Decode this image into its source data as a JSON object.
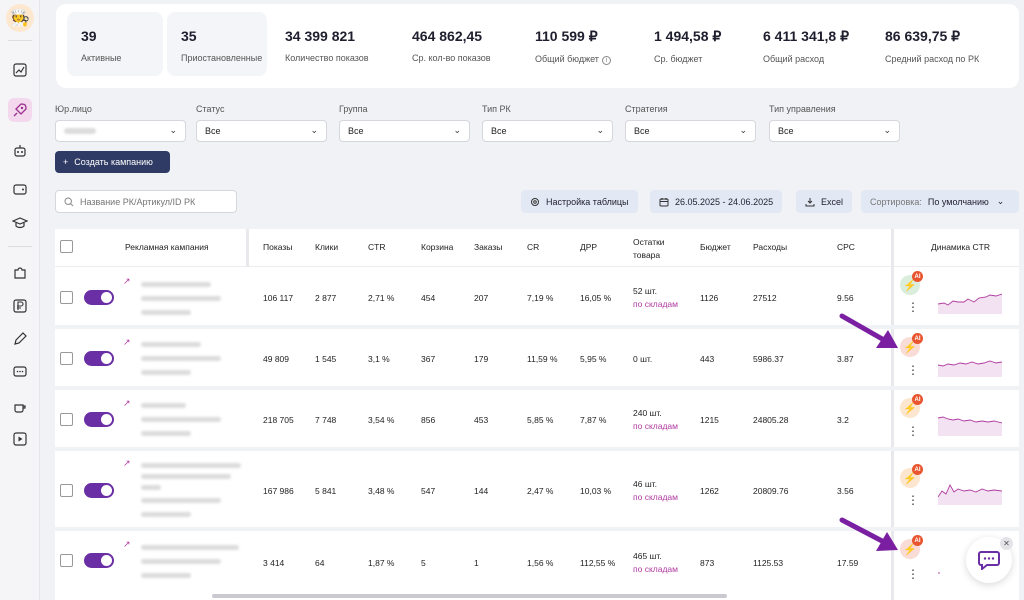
{
  "stats": {
    "active": {
      "value": "39",
      "label": "Активные"
    },
    "paused": {
      "value": "35",
      "label": "Приостановленные"
    },
    "impressions": {
      "value": "34 399 821",
      "label": "Количество показов"
    },
    "avg_impressions": {
      "value": "464 862,45",
      "label": "Ср. кол-во показов"
    },
    "total_budget": {
      "value": "110 599 ₽",
      "label": "Общий бюджет"
    },
    "avg_budget": {
      "value": "1 494,58 ₽",
      "label": "Ср. бюджет"
    },
    "total_spend": {
      "value": "6 411 341,8 ₽",
      "label": "Общий расход"
    },
    "avg_spend": {
      "value": "86 639,75 ₽",
      "label": "Средний расход по РК"
    }
  },
  "filters": [
    {
      "label": "Юр.лицо",
      "value": ""
    },
    {
      "label": "Статус",
      "value": "Все"
    },
    {
      "label": "Группа",
      "value": "Все"
    },
    {
      "label": "Тип РК",
      "value": "Все"
    },
    {
      "label": "Стратегия",
      "value": "Все"
    },
    {
      "label": "Тип управления",
      "value": "Все"
    }
  ],
  "create_button": "Создать кампанию",
  "toolbar": {
    "search_placeholder": "Название РК/Артикул/ID РК",
    "table_settings": "Настройка таблицы",
    "date_range": "26.05.2025 - 24.06.2025",
    "excel": "Excel",
    "sort_label": "Сортировка:",
    "sort_value": "По умолчанию"
  },
  "table": {
    "headers": {
      "campaign": "Рекламная кампания",
      "impressions": "Показы",
      "clicks": "Клики",
      "ctr": "CTR",
      "cart": "Корзина",
      "orders": "Заказы",
      "cr": "CR",
      "drr": "ДРР",
      "stock_1": "Остатки",
      "stock_2": "товара",
      "budget": "Бюджет",
      "spend": "Расходы",
      "cpc": "CPC",
      "ctr_dynamics": "Динамика CTR"
    },
    "rows": [
      {
        "impressions": "106 117",
        "clicks": "2 877",
        "ctr": "2,71 %",
        "cart": "454",
        "orders": "207",
        "cr": "7,19 %",
        "drr": "16,05 %",
        "stock": "52 шт.",
        "stock_link": "по складам",
        "budget": "1126",
        "spend": "27512",
        "cpc": "9.56",
        "ai": "AI",
        "badge_color": "#dbeedd"
      },
      {
        "impressions": "49 809",
        "clicks": "1 545",
        "ctr": "3,1 %",
        "cart": "367",
        "orders": "179",
        "cr": "11,59 %",
        "drr": "5,95 %",
        "stock": "0 шт.",
        "stock_link": "",
        "budget": "443",
        "spend": "5986.37",
        "cpc": "3.87",
        "ai": "AI",
        "badge_color": "#fadcd6"
      },
      {
        "impressions": "218 705",
        "clicks": "7 748",
        "ctr": "3,54 %",
        "cart": "856",
        "orders": "453",
        "cr": "5,85 %",
        "drr": "7,87 %",
        "stock": "240 шт.",
        "stock_link": "по складам",
        "budget": "1215",
        "spend": "24805.28",
        "cpc": "3.2",
        "ai": "AI",
        "badge_color": "#fde6cf"
      },
      {
        "impressions": "167 986",
        "clicks": "5 841",
        "ctr": "3,48 %",
        "cart": "547",
        "orders": "144",
        "cr": "2,47 %",
        "drr": "10,03 %",
        "stock": "46 шт.",
        "stock_link": "по складам",
        "budget": "1262",
        "spend": "20809.76",
        "cpc": "3.56",
        "ai": "AI",
        "badge_color": "#fde6cf"
      },
      {
        "impressions": "3 414",
        "clicks": "64",
        "ctr": "1,87 %",
        "cart": "5",
        "orders": "1",
        "cr": "1,56 %",
        "drr": "112,55 %",
        "stock": "465 шт.",
        "stock_link": "по складам",
        "budget": "873",
        "spend": "1125.53",
        "cpc": "17.59",
        "ai": "AI",
        "badge_color": "#fadcd6"
      }
    ]
  },
  "colors": {
    "accent": "#6b2fa5",
    "link": "#b03aa0",
    "primary_button": "#2f3b64",
    "arrow": "#7a1fa2"
  }
}
